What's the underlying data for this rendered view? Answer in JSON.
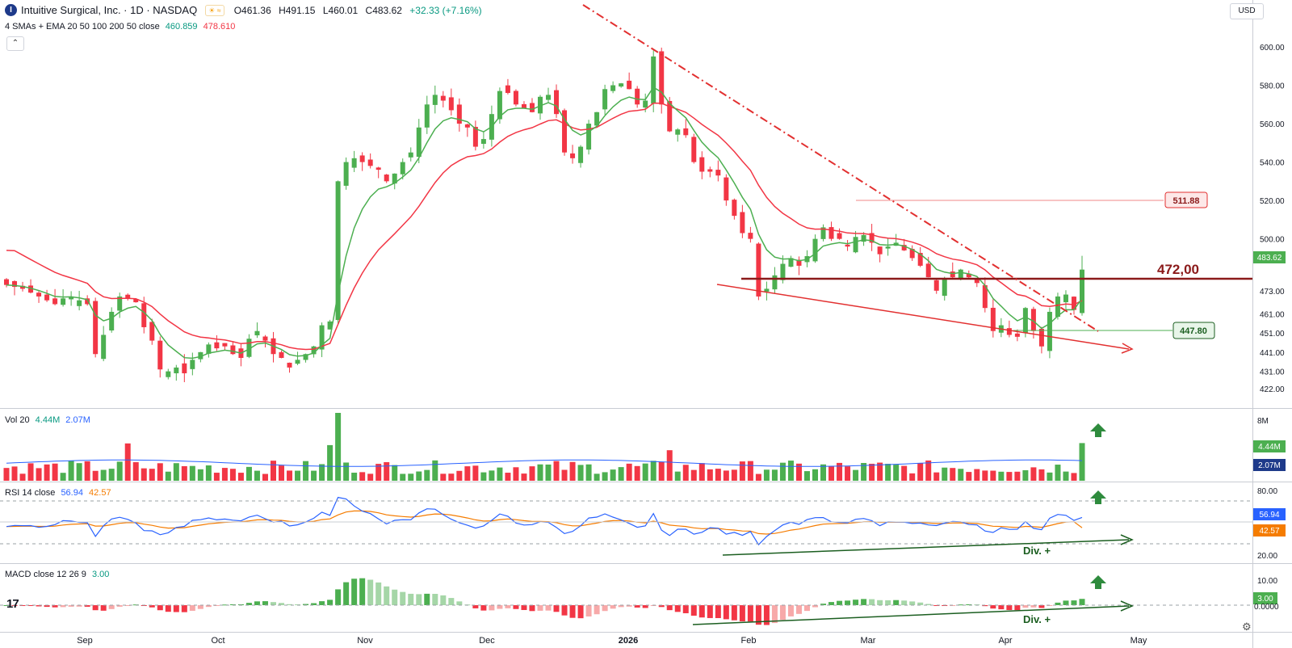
{
  "header": {
    "logo_letter": "I",
    "title": "Intuitive Surgical, Inc. · 1D · NASDAQ",
    "open_label": "O461.36",
    "high_label": "H491.15",
    "low_label": "L460.01",
    "close_label": "C483.62",
    "change_label": "+32.33 (+7.16%)"
  },
  "indicator_legend": {
    "label": "4 SMAs + EMA 20 50 100 200 50 close",
    "value1": "460.859",
    "value2": "478.610"
  },
  "currency": "USD",
  "volume_legend": {
    "label": "Vol 20",
    "value1": "4.44M",
    "value2": "2.07M"
  },
  "rsi_legend": {
    "label": "RSI 14 close",
    "value1": "56.94",
    "value2": "42.57"
  },
  "macd_legend": {
    "label": "MACD close 12 26 9",
    "value1": "3.00"
  },
  "colors": {
    "up": "#4caf50",
    "down": "#f23645",
    "ma_fast": "#4caf50",
    "ma_slow": "#f23645",
    "rsi": "#2962ff",
    "rsi_ma": "#f57c00",
    "support": "#8b1a1a",
    "trend_green": "#1b5e20"
  },
  "chart_data": [
    {
      "type": "candlestick",
      "title": "Intuitive Surgical, Inc. · 1D · NASDAQ",
      "y_ticks": [
        600,
        580,
        560,
        540,
        520,
        500,
        483.62,
        473,
        461,
        451,
        441,
        431,
        422
      ],
      "y_tick_labels": [
        "600.00",
        "580.00",
        "560.00",
        "540.00",
        "520.00",
        "500.00",
        "483.62",
        "473.00",
        "461.00",
        "451.00",
        "441.00",
        "431.00",
        "422.00"
      ],
      "x_labels": [
        "Sep",
        "Oct",
        "Nov",
        "Dec",
        "2026",
        "Feb",
        "Mar",
        "Apr",
        "May"
      ],
      "last_candle": {
        "open": 461.36,
        "high": 491.15,
        "low": 460.01,
        "close": 483.62
      },
      "horizontal_levels": [
        {
          "value": 472.0,
          "label": "472,00"
        },
        {
          "value": 511.88,
          "label": "511.88"
        },
        {
          "value": 447.8,
          "label": "447.80"
        }
      ],
      "series": [
        {
          "name": "EMA 20",
          "last": 460.859
        },
        {
          "name": "EMA 50",
          "last": 478.61
        }
      ],
      "candles_close_approx": [
        476,
        475,
        474,
        472,
        470,
        468,
        466,
        469,
        470,
        468,
        466,
        440,
        450,
        462,
        470,
        469,
        467,
        454,
        447,
        432,
        431,
        433,
        430,
        437,
        441,
        445,
        443,
        444,
        440,
        438,
        448,
        452,
        447,
        440,
        438,
        433,
        437,
        440,
        444,
        455,
        457,
        530,
        540,
        542,
        540,
        538,
        536,
        530,
        534,
        540,
        545,
        558,
        570,
        575,
        572,
        567,
        560,
        558,
        548,
        552,
        565,
        577,
        576,
        570,
        568,
        566,
        574,
        575,
        565,
        545,
        542,
        548,
        560,
        566,
        578,
        580,
        581,
        578,
        570,
        572,
        595,
        570,
        556,
        557,
        554,
        540,
        535,
        535,
        533,
        520,
        512,
        503,
        500,
        470,
        474,
        481,
        487,
        490,
        486,
        491,
        500,
        506,
        500,
        500,
        496,
        501,
        502,
        498,
        492,
        496,
        498,
        494,
        490,
        486,
        480,
        473,
        479,
        480,
        484,
        480,
        477,
        464,
        452,
        455,
        450,
        449,
        464,
        452,
        444,
        462,
        470,
        471,
        463,
        484
      ]
    },
    {
      "type": "bar",
      "title": "Vol 20",
      "y_ticks_labels": [
        "8M",
        "4.44M",
        "2.07M"
      ],
      "series": [
        {
          "name": "Volume",
          "last": "4.44M"
        },
        {
          "name": "Volume MA 20",
          "last": "2.07M"
        }
      ]
    },
    {
      "type": "line",
      "title": "RSI 14 close",
      "y_ticks_labels": [
        "80.00",
        "56.94",
        "42.57",
        "20.00"
      ],
      "series": [
        {
          "name": "RSI",
          "last": 56.94
        },
        {
          "name": "RSI MA",
          "last": 42.57
        }
      ],
      "annotation": "Div. +"
    },
    {
      "type": "bar",
      "title": "MACD close 12 26 9",
      "y_ticks_labels": [
        "10.00",
        "3.00",
        "0.0000"
      ],
      "series": [
        {
          "name": "Histogram",
          "last": 3.0
        }
      ],
      "annotation": "Div. +"
    }
  ],
  "price_axis_labels": {
    "last_price": "483.62",
    "level_472": "472,00",
    "level_511": "511.88",
    "level_447": "447.80"
  }
}
